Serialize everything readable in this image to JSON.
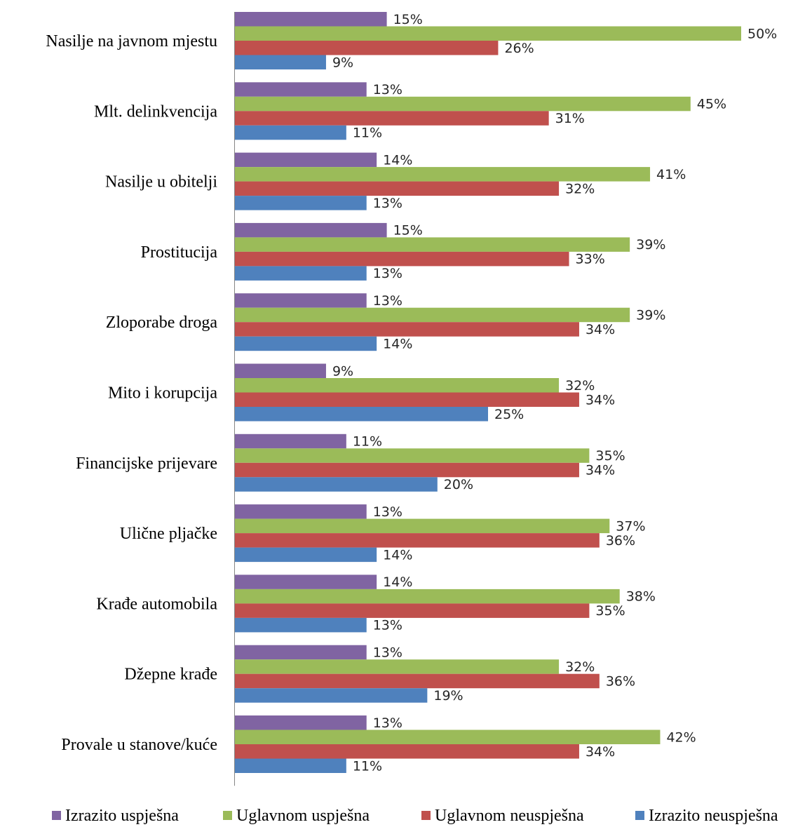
{
  "chart_data": {
    "type": "bar",
    "orientation": "horizontal",
    "title": "",
    "xlabel": "",
    "ylabel": "",
    "value_suffix": "%",
    "xlim": [
      0,
      50
    ],
    "grid": false,
    "legend_position": "bottom",
    "categories": [
      "Nasilje na javnom mjestu",
      "Mlt. delinkvencija",
      "Nasilje u obitelji",
      "Prostitucija",
      "Zloporabe droga",
      "Mito i korupcija",
      "Financijske prijevare",
      "Ulične pljačke",
      "Krađe automobila",
      "Džepne krađe",
      "Provale u stanove/kuće"
    ],
    "series": [
      {
        "name": "Izrazito uspješna",
        "color": "#8064A2",
        "values": [
          15,
          13,
          14,
          15,
          13,
          9,
          11,
          13,
          14,
          13,
          13
        ]
      },
      {
        "name": "Uglavnom uspješna",
        "color": "#9BBB59",
        "values": [
          50,
          45,
          41,
          39,
          39,
          32,
          35,
          37,
          38,
          32,
          42
        ]
      },
      {
        "name": "Uglavnom neuspješna",
        "color": "#C0504D",
        "values": [
          26,
          31,
          32,
          33,
          34,
          34,
          34,
          36,
          35,
          36,
          34
        ]
      },
      {
        "name": "Izrazito neuspješna",
        "color": "#4F81BD",
        "values": [
          9,
          11,
          13,
          13,
          14,
          25,
          20,
          14,
          13,
          19,
          11
        ]
      }
    ]
  }
}
